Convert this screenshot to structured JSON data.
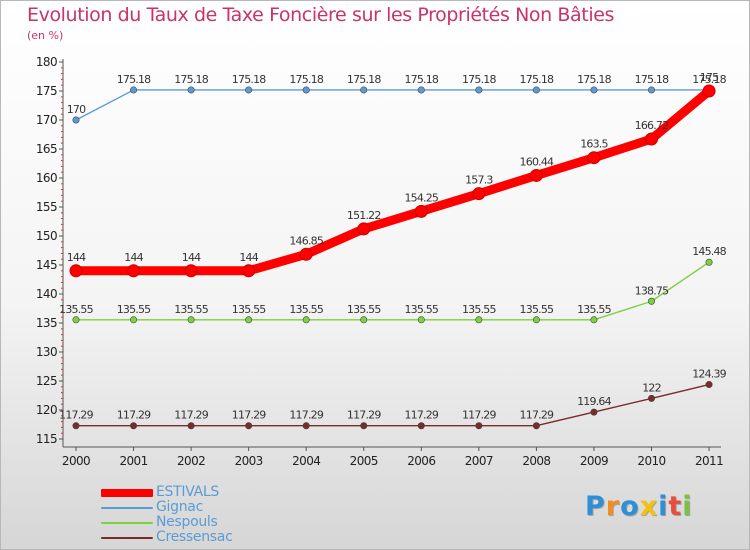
{
  "chart_data": {
    "type": "line",
    "title": "Evolution du Taux de Taxe Foncière sur les Propriétés Non Bâties",
    "subtitle": "(en %)",
    "x": [
      "2000",
      "2001",
      "2002",
      "2003",
      "2004",
      "2005",
      "2006",
      "2007",
      "2008",
      "2009",
      "2010",
      "2011"
    ],
    "ylim": [
      115,
      180
    ],
    "yticks": [
      "115",
      "120",
      "125",
      "130",
      "135",
      "140",
      "145",
      "150",
      "155",
      "160",
      "165",
      "170",
      "175",
      "180"
    ],
    "grid": false,
    "series": [
      {
        "name": "Gignac",
        "color": "#5b9bd5",
        "values": [
          170,
          175.18,
          175.18,
          175.18,
          175.18,
          175.18,
          175.18,
          175.18,
          175.18,
          175.18,
          175.18,
          175.18
        ],
        "labels": [
          "170",
          "175.18",
          "175.18",
          "175.18",
          "175.18",
          "175.18",
          "175.18",
          "175.18",
          "175.18",
          "175.18",
          "175.18",
          "175.18"
        ]
      },
      {
        "name": "Nespouls",
        "color": "#7dd03f",
        "values": [
          135.55,
          135.55,
          135.55,
          135.55,
          135.55,
          135.55,
          135.55,
          135.55,
          135.55,
          135.55,
          138.75,
          145.48
        ],
        "labels": [
          "135.55",
          "135.55",
          "135.55",
          "135.55",
          "135.55",
          "135.55",
          "135.55",
          "135.55",
          "135.55",
          "135.55",
          "138.75",
          "145.48"
        ]
      },
      {
        "name": "Cressensac",
        "color": "#7a2b2b",
        "values": [
          117.29,
          117.29,
          117.29,
          117.29,
          117.29,
          117.29,
          117.29,
          117.29,
          117.29,
          119.64,
          122,
          124.39
        ],
        "labels": [
          "117.29",
          "117.29",
          "117.29",
          "117.29",
          "117.29",
          "117.29",
          "117.29",
          "117.29",
          "117.29",
          "119.64",
          "122",
          "124.39"
        ]
      },
      {
        "name": "ESTIVALS",
        "color": "#ff0000",
        "values": [
          144,
          144,
          144,
          144,
          146.85,
          151.22,
          154.25,
          157.3,
          160.44,
          163.5,
          166.72,
          175
        ],
        "labels": [
          "144",
          "144",
          "144",
          "144",
          "146.85",
          "151.22",
          "154.25",
          "157.3",
          "160.44",
          "163.5",
          "166.72",
          "175"
        ]
      }
    ],
    "legend": [
      "ESTIVALS",
      "Gignac",
      "Nespouls",
      "Cressensac"
    ]
  },
  "legend_styles": {
    "ESTIVALS": {
      "color": "#ff0000",
      "text_color": "#5b9bd5"
    },
    "Gignac": {
      "color": "#5b9bd5",
      "text_color": "#5b9bd5"
    },
    "Nespouls": {
      "color": "#7dd03f",
      "text_color": "#5b9bd5"
    },
    "Cressensac": {
      "color": "#7a2b2b",
      "text_color": "#5b9bd5"
    }
  },
  "logo": {
    "letters": [
      "P",
      "r",
      "o",
      "x",
      "i",
      "t",
      "i"
    ],
    "colors": [
      "#2e8fd6",
      "#f28c1e",
      "#2e8fd6",
      "#f4c20d",
      "#2e8fd6",
      "#e94e3c",
      "#7ac143"
    ]
  }
}
